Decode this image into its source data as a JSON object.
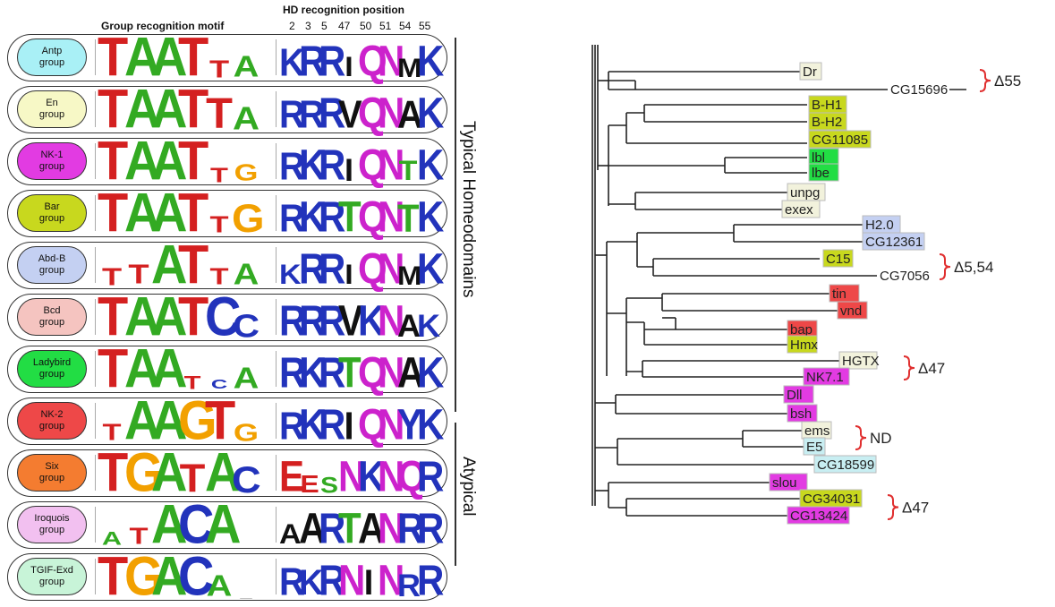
{
  "headers": {
    "motif": "Group recognition motif",
    "hd": "HD recognition position",
    "positions": [
      "2",
      "3",
      "5",
      "47",
      "50",
      "51",
      "54",
      "55"
    ]
  },
  "side_labels": {
    "typical": "Typical Homeodomains",
    "atypical": "Atypical"
  },
  "groups": [
    {
      "name": "Antp\ngroup",
      "color": "#a9f0f6",
      "motif": [
        [
          "T",
          "#d42020",
          1
        ],
        [
          "A",
          "#33aa22",
          1
        ],
        [
          "A",
          "#33aa22",
          1
        ],
        [
          "T",
          "#d42020",
          1
        ],
        [
          "T",
          "#d42020",
          0.45
        ],
        [
          "A",
          "#33aa22",
          0.55
        ]
      ],
      "hd": [
        [
          "K",
          "#2233bb",
          0.9
        ],
        [
          "R",
          "#2233bb",
          1
        ],
        [
          "R",
          "#2233bb",
          1
        ],
        [
          "I",
          "#111111",
          0.6
        ],
        [
          "Q",
          "#cc22cc",
          1
        ],
        [
          "N",
          "#cc22cc",
          1
        ],
        [
          "M",
          "#111111",
          0.55
        ],
        [
          "K",
          "#2233bb",
          1
        ]
      ]
    },
    {
      "name": "En\ngroup",
      "color": "#f7f8c6",
      "motif": [
        [
          "T",
          "#d42020",
          1
        ],
        [
          "A",
          "#33aa22",
          1
        ],
        [
          "A",
          "#33aa22",
          1
        ],
        [
          "T",
          "#d42020",
          1
        ],
        [
          "T",
          "#d42020",
          0.8
        ],
        [
          "A",
          "#33aa22",
          0.6
        ]
      ],
      "hd": [
        [
          "R",
          "#2233bb",
          0.9
        ],
        [
          "R",
          "#2233bb",
          0.9
        ],
        [
          "R",
          "#2233bb",
          1
        ],
        [
          "V",
          "#111111",
          0.9
        ],
        [
          "Q",
          "#cc22cc",
          1
        ],
        [
          "N",
          "#cc22cc",
          1
        ],
        [
          "A",
          "#111111",
          0.9
        ],
        [
          "K",
          "#2233bb",
          1
        ]
      ]
    },
    {
      "name": "NK-1\ngroup",
      "color": "#e23be2",
      "motif": [
        [
          "T",
          "#d42020",
          1
        ],
        [
          "A",
          "#33aa22",
          1
        ],
        [
          "A",
          "#33aa22",
          1
        ],
        [
          "T",
          "#d42020",
          1
        ],
        [
          "T",
          "#d42020",
          0.35
        ],
        [
          "G",
          "#f2a000",
          0.4
        ]
      ],
      "hd": [
        [
          "R",
          "#2233bb",
          0.9
        ],
        [
          "K",
          "#2233bb",
          1
        ],
        [
          "R",
          "#2233bb",
          1
        ],
        [
          "I",
          "#111111",
          0.7
        ],
        [
          "Q",
          "#cc22cc",
          1
        ],
        [
          "N",
          "#cc22cc",
          1
        ],
        [
          "T",
          "#33aa22",
          0.6
        ],
        [
          "K",
          "#2233bb",
          1
        ]
      ]
    },
    {
      "name": "Bar\ngroup",
      "color": "#c8d81e",
      "motif": [
        [
          "T",
          "#d42020",
          1
        ],
        [
          "A",
          "#33aa22",
          1
        ],
        [
          "A",
          "#33aa22",
          1
        ],
        [
          "T",
          "#d42020",
          1
        ],
        [
          "T",
          "#d42020",
          0.4
        ],
        [
          "G",
          "#f2a000",
          0.75
        ]
      ],
      "hd": [
        [
          "R",
          "#2233bb",
          0.9
        ],
        [
          "K",
          "#2233bb",
          1
        ],
        [
          "R",
          "#2233bb",
          1
        ],
        [
          "T",
          "#33aa22",
          1
        ],
        [
          "Q",
          "#cc22cc",
          1
        ],
        [
          "N",
          "#cc22cc",
          1
        ],
        [
          "T",
          "#33aa22",
          0.9
        ],
        [
          "K",
          "#2233bb",
          1
        ]
      ]
    },
    {
      "name": "Abd-B\ngroup",
      "color": "#c4d0f2",
      "motif": [
        [
          "T",
          "#d42020",
          0.45
        ],
        [
          "T",
          "#d42020",
          0.5
        ],
        [
          "A",
          "#33aa22",
          1
        ],
        [
          "T",
          "#d42020",
          1
        ],
        [
          "T",
          "#d42020",
          0.4
        ],
        [
          "A",
          "#33aa22",
          0.55
        ]
      ],
      "hd": [
        [
          "K",
          "#2233bb",
          0.6
        ],
        [
          "R",
          "#2233bb",
          1
        ],
        [
          "R",
          "#2233bb",
          1
        ],
        [
          "I",
          "#111111",
          0.6
        ],
        [
          "Q",
          "#cc22cc",
          1
        ],
        [
          "N",
          "#cc22cc",
          1
        ],
        [
          "M",
          "#111111",
          0.55
        ],
        [
          "K",
          "#2233bb",
          1
        ]
      ]
    },
    {
      "name": "Bcd\ngroup",
      "color": "#f5c4c0",
      "motif": [
        [
          "T",
          "#d42020",
          1
        ],
        [
          "A",
          "#33aa22",
          1
        ],
        [
          "A",
          "#33aa22",
          1
        ],
        [
          "T",
          "#d42020",
          1
        ],
        [
          "C",
          "#2233bb",
          1
        ],
        [
          "C",
          "#2233bb",
          0.6
        ]
      ],
      "hd": [
        [
          "R",
          "#2233bb",
          1
        ],
        [
          "R",
          "#2233bb",
          1
        ],
        [
          "R",
          "#2233bb",
          1
        ],
        [
          "V",
          "#111111",
          1
        ],
        [
          "K",
          "#2233bb",
          1
        ],
        [
          "N",
          "#cc22cc",
          1
        ],
        [
          "A",
          "#111111",
          0.7
        ],
        [
          "K",
          "#2233bb",
          0.7
        ]
      ]
    },
    {
      "name": "Ladybird\ngroup",
      "color": "#22dd44",
      "motif": [
        [
          "T",
          "#d42020",
          1
        ],
        [
          "A",
          "#33aa22",
          1
        ],
        [
          "A",
          "#33aa22",
          1
        ],
        [
          "T",
          "#d42020",
          0.3
        ],
        [
          "C",
          "#2233bb",
          0.15
        ],
        [
          "A",
          "#33aa22",
          0.55
        ]
      ],
      "hd": [
        [
          "R",
          "#2233bb",
          1
        ],
        [
          "K",
          "#2233bb",
          1
        ],
        [
          "R",
          "#2233bb",
          1
        ],
        [
          "T",
          "#33aa22",
          1
        ],
        [
          "Q",
          "#cc22cc",
          1
        ],
        [
          "N",
          "#cc22cc",
          1
        ],
        [
          "A",
          "#111111",
          1
        ],
        [
          "K",
          "#2233bb",
          1
        ]
      ]
    },
    {
      "name": "NK-2\ngroup",
      "color": "#ee4848",
      "motif": [
        [
          "T",
          "#d42020",
          0.4
        ],
        [
          "A",
          "#33aa22",
          1
        ],
        [
          "A",
          "#33aa22",
          1
        ],
        [
          "G",
          "#f2a000",
          1
        ],
        [
          "T",
          "#d42020",
          1
        ],
        [
          "G",
          "#f2a000",
          0.45
        ]
      ],
      "hd": [
        [
          "R",
          "#2233bb",
          0.9
        ],
        [
          "K",
          "#2233bb",
          1
        ],
        [
          "R",
          "#2233bb",
          1
        ],
        [
          "I",
          "#111111",
          0.9
        ],
        [
          "Q",
          "#cc22cc",
          1
        ],
        [
          "N",
          "#cc22cc",
          1
        ],
        [
          "Y",
          "#2233bb",
          1
        ],
        [
          "K",
          "#2233bb",
          1
        ]
      ]
    },
    {
      "name": "Six\ngroup",
      "color": "#f47c30",
      "motif": [
        [
          "T",
          "#d42020",
          1
        ],
        [
          "G",
          "#f2a000",
          1
        ],
        [
          "A",
          "#33aa22",
          1
        ],
        [
          "T",
          "#d42020",
          0.75
        ],
        [
          "A",
          "#33aa22",
          1
        ],
        [
          "C",
          "#2233bb",
          0.7
        ]
      ],
      "hd": [
        [
          "E",
          "#d42020",
          1
        ],
        [
          "E",
          "#d42020",
          0.5
        ],
        [
          "S",
          "#33aa22",
          0.4
        ],
        [
          "N",
          "#cc22cc",
          1
        ],
        [
          "K",
          "#2233bb",
          1
        ],
        [
          "N",
          "#cc22cc",
          1
        ],
        [
          "Q",
          "#cc22cc",
          1
        ],
        [
          "R",
          "#2233bb",
          1
        ]
      ]
    },
    {
      "name": "Iroquois\ngroup",
      "color": "#f2c0f0",
      "motif": [
        [
          "A",
          "#33aa22",
          0.3
        ],
        [
          "T",
          "#d42020",
          0.4
        ],
        [
          "A",
          "#33aa22",
          1
        ],
        [
          "C",
          "#2233bb",
          1
        ],
        [
          "A",
          "#33aa22",
          1
        ],
        [
          "",
          "#333333",
          0
        ]
      ],
      "hd": [
        [
          "A",
          "#111111",
          0.6
        ],
        [
          "A",
          "#111111",
          1
        ],
        [
          "R",
          "#2233bb",
          1
        ],
        [
          "T",
          "#33aa22",
          1
        ],
        [
          "A",
          "#111111",
          1
        ],
        [
          "N",
          "#cc22cc",
          1
        ],
        [
          "R",
          "#2233bb",
          1
        ],
        [
          "R",
          "#2233bb",
          1
        ]
      ]
    },
    {
      "name": "TGIF-Exd\ngroup",
      "color": "#c8f4d8",
      "motif": [
        [
          "T",
          "#d42020",
          1
        ],
        [
          "G",
          "#f2a000",
          1
        ],
        [
          "A",
          "#33aa22",
          1
        ],
        [
          "C",
          "#2233bb",
          1
        ],
        [
          "A",
          "#33aa22",
          0.55
        ],
        [
          "_",
          "#888888",
          0.1
        ]
      ],
      "hd": [
        [
          "R",
          "#2233bb",
          0.9
        ],
        [
          "K",
          "#2233bb",
          0.8
        ],
        [
          "R",
          "#2233bb",
          1
        ],
        [
          "N",
          "#cc22cc",
          1
        ],
        [
          "I",
          "#111111",
          0.8
        ],
        [
          "N",
          "#cc22cc",
          1
        ],
        [
          "R",
          "#2233bb",
          0.7
        ],
        [
          "R",
          "#2233bb",
          1
        ]
      ]
    }
  ],
  "tree": {
    "leaves": [
      {
        "name": "Dr",
        "bg": "#f2f2dc"
      },
      {
        "name": "CG15696",
        "bg": "#ffffff"
      },
      {
        "name": "B-H1",
        "bg": "#c8d81e"
      },
      {
        "name": "B-H2",
        "bg": "#c8d81e"
      },
      {
        "name": "CG11085",
        "bg": "#c8d81e"
      },
      {
        "name": "lbl",
        "bg": "#22dd44"
      },
      {
        "name": "lbe",
        "bg": "#22dd44"
      },
      {
        "name": "unpg",
        "bg": "#f2f2dc"
      },
      {
        "name": "exex",
        "bg": "#f2f2dc"
      },
      {
        "name": "H2.0",
        "bg": "#c4d0f2"
      },
      {
        "name": "CG12361",
        "bg": "#c4d0f2"
      },
      {
        "name": "C15",
        "bg": "#c8d81e"
      },
      {
        "name": "CG7056",
        "bg": "#ffffff"
      },
      {
        "name": "tin",
        "bg": "#ee4848"
      },
      {
        "name": "vnd",
        "bg": "#ee4848"
      },
      {
        "name": "bap",
        "bg": "#ee4848"
      },
      {
        "name": "Hmx",
        "bg": "#c8d81e"
      },
      {
        "name": "HGTX",
        "bg": "#f2f2dc"
      },
      {
        "name": "NK7.1",
        "bg": "#e23be2"
      },
      {
        "name": "Dll",
        "bg": "#e23be2"
      },
      {
        "name": "bsh",
        "bg": "#e23be2"
      },
      {
        "name": "ems",
        "bg": "#f2f2dc"
      },
      {
        "name": "E5",
        "bg": "#c8eef2"
      },
      {
        "name": "CG18599",
        "bg": "#c8eef2"
      },
      {
        "name": "slou",
        "bg": "#e23be2"
      },
      {
        "name": "CG34031",
        "bg": "#c8d81e"
      },
      {
        "name": "CG13424",
        "bg": "#e23be2"
      }
    ],
    "annotations": [
      "Δ55",
      "Δ5,54",
      "Δ47",
      "ND",
      "Δ47"
    ]
  }
}
